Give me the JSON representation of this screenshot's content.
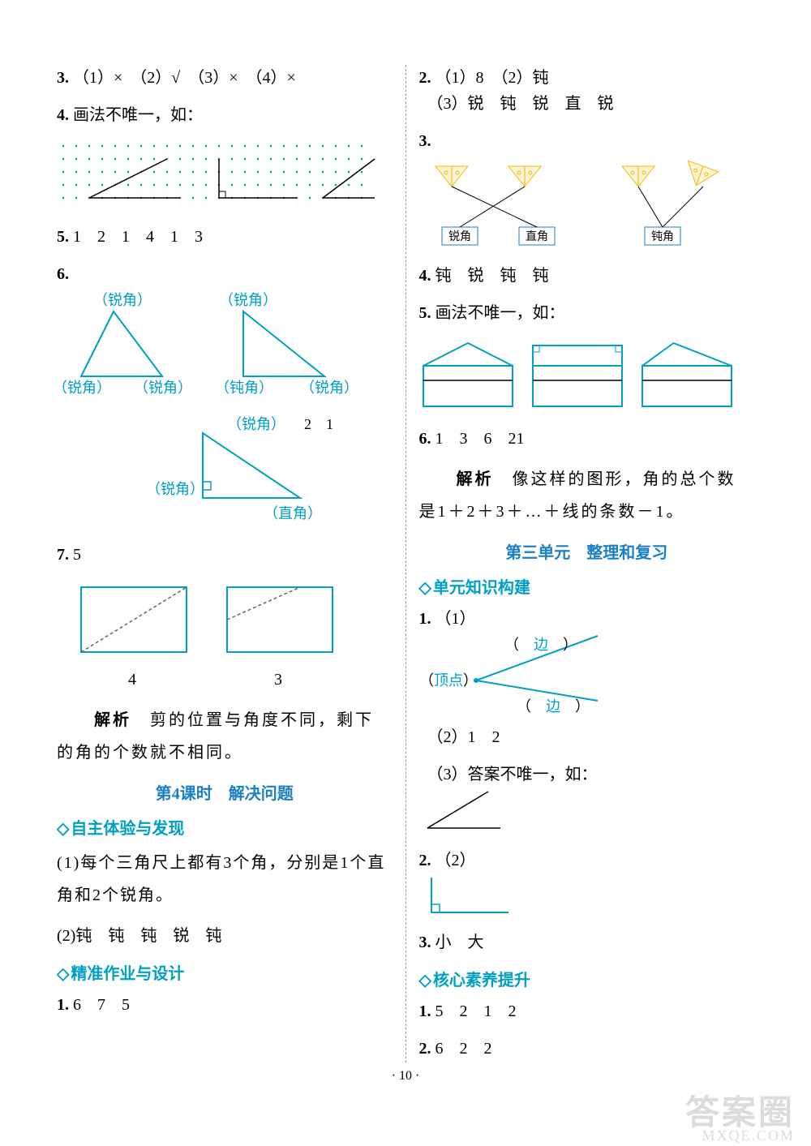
{
  "left": {
    "q3": {
      "num": "3.",
      "text": "（1）×　（2）√　（3）×　（4）×"
    },
    "q4": {
      "num": "4.",
      "text": "画法不唯一，如：",
      "grid": {
        "rows": 5,
        "cols": 24,
        "dot_color": "#00a0c6",
        "dot_r": 1.3,
        "lines": [
          {
            "pts": [
              [
                2,
                4
              ],
              [
                8,
                1
              ],
              [
                2,
                4
              ],
              [
                9,
                4
              ]
            ],
            "stroke": "#000"
          },
          {
            "pts": [
              [
                12,
                4
              ],
              [
                12,
                1
              ],
              [
                12,
                4
              ],
              [
                18,
                4
              ]
            ],
            "stroke": "#000",
            "right_angle": true
          },
          {
            "pts": [
              [
                20,
                4
              ],
              [
                24,
                1
              ],
              [
                20,
                4
              ],
              [
                24,
                4
              ]
            ],
            "stroke": "#000"
          }
        ]
      }
    },
    "q5": {
      "num": "5.",
      "text": "1　2　1　4　1　3"
    },
    "q6": {
      "num": "6.",
      "labels": [
        "（锐角）",
        "（锐角）",
        "（锐角）",
        "（锐角）",
        "（钝角）",
        "（锐角）",
        "（锐角）",
        "2　1",
        "（锐角）",
        "（直角）"
      ],
      "tri_stroke": "#00a0c6"
    },
    "q7": {
      "num": "7.",
      "val": "5",
      "rects": [
        {
          "cut": "diag",
          "label": "4"
        },
        {
          "cut": "corner",
          "label": "3"
        }
      ],
      "stroke": "#00a0c6",
      "dash_stroke": "#666",
      "explain_label": "解析",
      "explain": "剪的位置与角度不同，剩下的角的个数就不相同。"
    },
    "lesson4_heading": "第4课时　解决问题",
    "sec1_heading": "自主体验与发现",
    "sec1_items": {
      "i1": "(1)每个三角尺上都有3个角，分别是1个直角和2个锐角。",
      "i2": "(2)钝　钝　钝　锐　钝"
    },
    "sec2_heading": "精准作业与设计",
    "sec2_q1": {
      "num": "1.",
      "text": "6　7　5"
    }
  },
  "right": {
    "q2": {
      "num": "2.",
      "l1": "（1）8　（2）钝",
      "l2": "（3）锐　钝　锐　直　锐"
    },
    "q3": {
      "num": "3.",
      "plane_fill": "#fff4d6",
      "plane_stroke": "#f5b400",
      "box_labels": [
        "锐角",
        "直角",
        "钝角"
      ],
      "box_border": "#1a7fc4"
    },
    "q4": {
      "num": "4.",
      "text": "钝　锐　钝　钝"
    },
    "q5": {
      "num": "5.",
      "text": "画法不唯一，如：",
      "stroke": "#00a0c6"
    },
    "q6": {
      "num": "6.",
      "text": "1　3　6　21",
      "explain_label": "解析",
      "explain": "像这样的图形，角的总个数是1＋2＋3＋…＋线的条数－1。"
    },
    "unit3_heading": "第三单元　整理和复习",
    "sec3_heading": "单元知识构建",
    "u_q1": {
      "num": "1.",
      "sub1": "（1）",
      "vertex_label": "（顶点）",
      "edge_label": "（　边　）",
      "cyan": "#00a0c6",
      "sub2": "（2）1　2",
      "sub3": "（3）答案不唯一，如："
    },
    "u_q2": {
      "num": "2.",
      "text": "（2）",
      "stroke": "#00a0c6"
    },
    "u_q3": {
      "num": "3.",
      "text": "小　大"
    },
    "sec4_heading": "核心素养提升",
    "c_q1": {
      "num": "1.",
      "text": "5　2　1　2"
    },
    "c_q2": {
      "num": "2.",
      "text": "6　2　2"
    }
  },
  "page_num": "· 10 ·",
  "watermark": "答案圈",
  "watermark_url": "MXQE.COM"
}
